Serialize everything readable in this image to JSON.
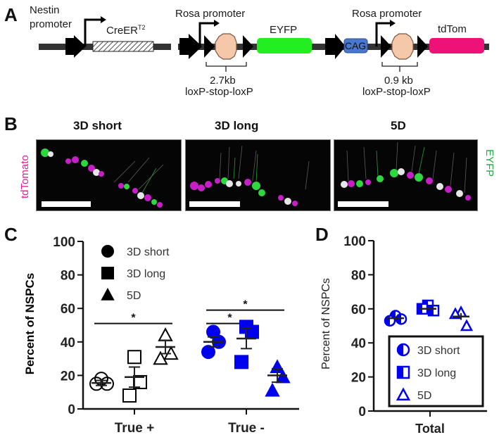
{
  "panels": {
    "A": {
      "letter": "A",
      "construct1": {
        "promoter_label_line1": "Nestin",
        "promoter_label_line2": "promoter",
        "gene_label": "CreER",
        "gene_superscript": "T2"
      },
      "construct2": {
        "promoter_label": "Rosa promoter",
        "reporter_label": "EYFP",
        "cassette_size": "2.7kb",
        "cassette_label": "loxP-stop-loxP",
        "reporter_color": "#22ee22"
      },
      "construct3": {
        "enhancer_label": "CAG",
        "promoter_label": "Rosa promoter",
        "reporter_label": "tdTom",
        "cassette_size": "0.9 kb",
        "cassette_label": "loxP-stop-loxP",
        "enhancer_color": "#4a78d0",
        "reporter_color": "#ee1177"
      },
      "stop_color": "#f4c8a8"
    },
    "B": {
      "letter": "B",
      "conditions": [
        "3D short",
        "3D long",
        "5D"
      ],
      "left_channel_label": "tdTomato",
      "right_channel_label": "EYFP",
      "left_channel_color": "#dd2299",
      "right_channel_color": "#22aa44"
    },
    "C": {
      "letter": "C"
    },
    "D": {
      "letter": "D"
    }
  },
  "chart_data": [
    {
      "panel": "C",
      "type": "scatter",
      "title": "",
      "xlabel": "",
      "ylabel": "Percent of NSPCs",
      "ylim": [
        0,
        100
      ],
      "yticks": [
        0,
        20,
        40,
        60,
        80,
        100
      ],
      "categories": [
        "True +",
        "True -"
      ],
      "legend": {
        "placement": "top-left",
        "entries": [
          {
            "name": "3D short",
            "marker": "circle"
          },
          {
            "name": "3D long",
            "marker": "square"
          },
          {
            "name": "5D",
            "marker": "triangle"
          }
        ]
      },
      "series": [
        {
          "name": "3D short",
          "marker": "circle",
          "groups": [
            {
              "category": "True +",
              "color": "#000000",
              "filled": false,
              "values": [
                18,
                15,
                15
              ],
              "mean": 15.5,
              "sem": 1.5
            },
            {
              "category": "True -",
              "color": "#0000ee",
              "filled": true,
              "values": [
                46,
                40,
                34
              ],
              "mean": 40,
              "sem": 3
            }
          ]
        },
        {
          "name": "3D long",
          "marker": "square",
          "groups": [
            {
              "category": "True +",
              "color": "#000000",
              "filled": false,
              "values": [
                31,
                16,
                8
              ],
              "mean": 19,
              "sem": 6
            },
            {
              "category": "True -",
              "color": "#0000ee",
              "filled": true,
              "values": [
                49,
                46,
                28
              ],
              "mean": 42,
              "sem": 6
            }
          ]
        },
        {
          "name": "5D",
          "marker": "triangle",
          "groups": [
            {
              "category": "True +",
              "color": "#000000",
              "filled": false,
              "values": [
                44,
                33,
                30
              ],
              "mean": 37,
              "sem": 4
            },
            {
              "category": "True -",
              "color": "#0000ee",
              "filled": true,
              "values": [
                25,
                19,
                11
              ],
              "mean": 20,
              "sem": 4
            }
          ]
        }
      ],
      "annotations": [
        {
          "text": "*",
          "category": "True +",
          "from": "3D short",
          "to": "5D",
          "y": 51
        },
        {
          "text": "*",
          "category": "True -",
          "from": "3D short",
          "to": "3D long",
          "y": 51
        },
        {
          "text": "*",
          "category": "True -",
          "from": "3D short",
          "to": "5D",
          "y": 59
        }
      ]
    },
    {
      "panel": "D",
      "type": "scatter",
      "title": "",
      "xlabel": "",
      "ylabel": "Percent of NSPCs",
      "ylim": [
        0,
        100
      ],
      "yticks": [
        0,
        20,
        40,
        60,
        80,
        100
      ],
      "categories": [
        "Total"
      ],
      "legend": {
        "placement": "bottom-right",
        "entries": [
          {
            "name": "3D short",
            "marker": "half-circle"
          },
          {
            "name": "3D long",
            "marker": "half-square"
          },
          {
            "name": "5D",
            "marker": "open-triangle"
          }
        ]
      },
      "series": [
        {
          "name": "3D short",
          "marker": "half-circle",
          "color": "#0000ee",
          "values": [
            56,
            53,
            54
          ],
          "mean": 54.5,
          "sem": 1
        },
        {
          "name": "3D long",
          "marker": "half-square",
          "color": "#0000ee",
          "values": [
            62,
            60,
            59
          ],
          "mean": 60,
          "sem": 1
        },
        {
          "name": "5D",
          "marker": "open-triangle",
          "color": "#0000ee",
          "values": [
            58,
            57,
            50
          ],
          "mean": 55.5,
          "sem": 2
        }
      ]
    }
  ]
}
